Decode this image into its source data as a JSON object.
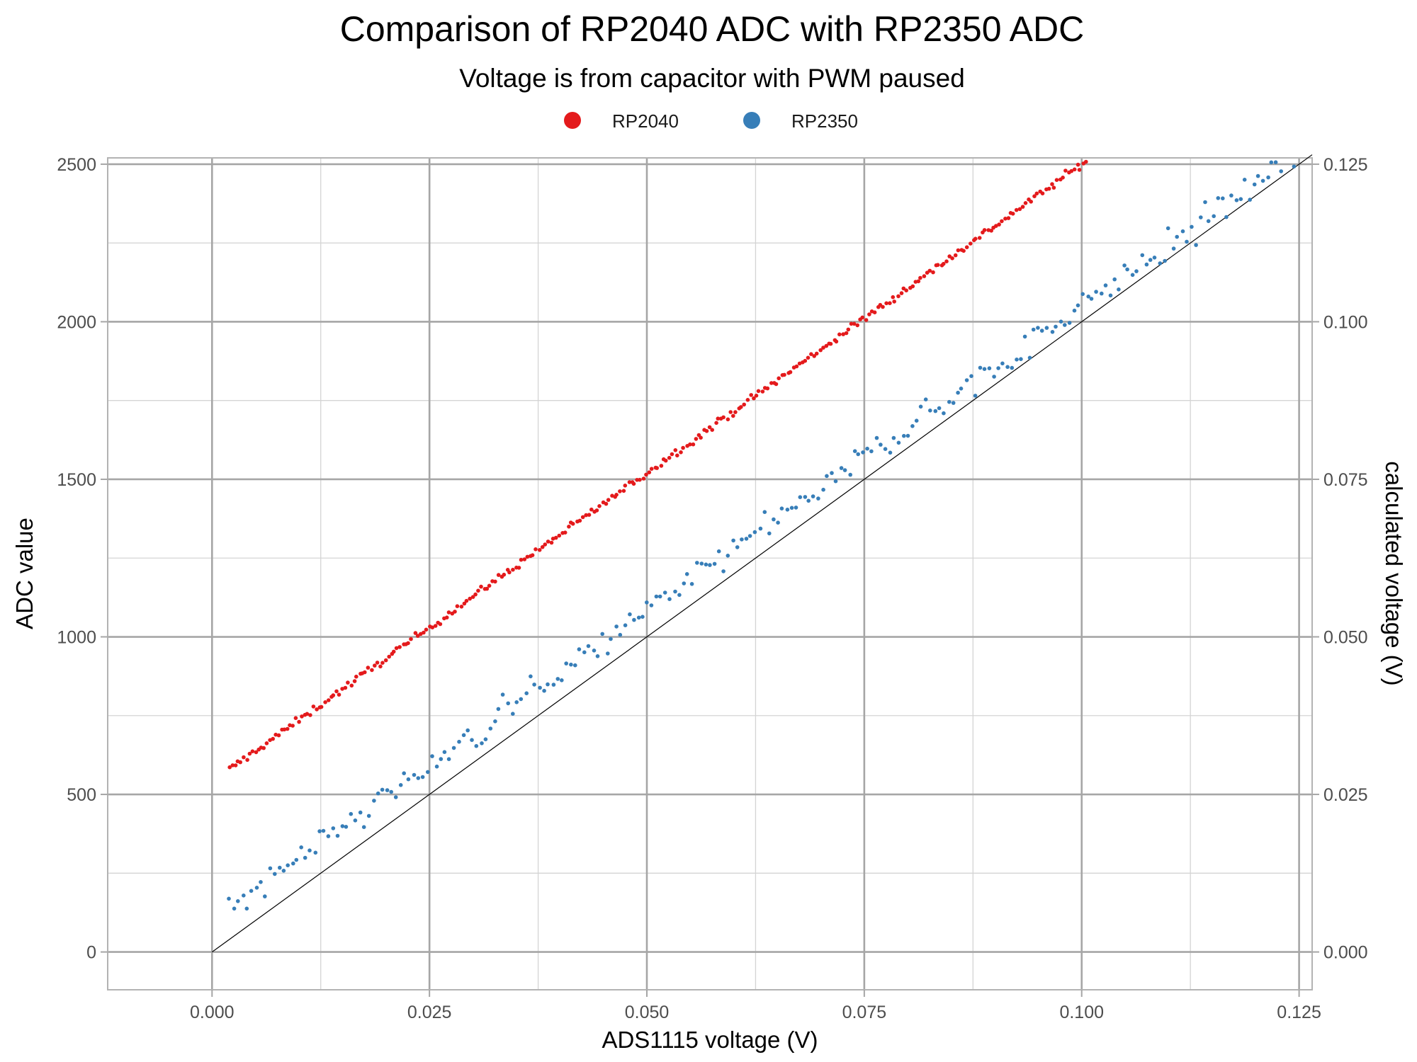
{
  "chart_data": {
    "type": "scatter",
    "title": "Comparison of RP2040 ADC with RP2350 ADC",
    "subtitle": "Voltage is from capacitor with PWM paused",
    "xlabel": "ADS1115 voltage (V)",
    "ylabel": "ADC value",
    "y2label": "calculated voltage (V)",
    "xlim": [
      -0.012,
      0.1265
    ],
    "ylim": [
      -120,
      2520
    ],
    "y2lim": [
      -0.006,
      0.126
    ],
    "x_ticks": [
      "0.000",
      "0.025",
      "0.050",
      "0.075",
      "0.100",
      "0.125"
    ],
    "y_ticks": [
      "0",
      "500",
      "1000",
      "1500",
      "2000",
      "2500"
    ],
    "y2_ticks": [
      "0.000",
      "0.025",
      "0.050",
      "0.075",
      "0.100",
      "0.125"
    ],
    "grid": true,
    "legend_position": "top",
    "reference_line": {
      "description": "y = x (ideal)",
      "from": [
        0,
        0
      ],
      "to": [
        0.1265,
        2530
      ],
      "color": "#000000"
    },
    "series": [
      {
        "name": "RP2040",
        "color": "#e41a1c",
        "fit": {
          "intercept": 540,
          "slope": 19600
        },
        "x_range": [
          0.002,
          0.1015
        ],
        "n_points": 300,
        "points": [
          {
            "x": 0.002,
            "y": 565
          },
          {
            "x": 0.01,
            "y": 735
          },
          {
            "x": 0.02,
            "y": 930
          },
          {
            "x": 0.025,
            "y": 1000
          },
          {
            "x": 0.03,
            "y": 1130
          },
          {
            "x": 0.04,
            "y": 1320
          },
          {
            "x": 0.05,
            "y": 1515
          },
          {
            "x": 0.06,
            "y": 1710
          },
          {
            "x": 0.07,
            "y": 1900
          },
          {
            "x": 0.075,
            "y": 2005
          },
          {
            "x": 0.08,
            "y": 2100
          },
          {
            "x": 0.09,
            "y": 2300
          },
          {
            "x": 0.1015,
            "y": 2520
          }
        ]
      },
      {
        "name": "RP2350",
        "color": "#377eb8",
        "fit": {
          "intercept": 110,
          "slope": 19400
        },
        "x_range": [
          0.002,
          0.1255
        ],
        "n_points": 240,
        "points": [
          {
            "x": 0.002,
            "y": 165
          },
          {
            "x": 0.01,
            "y": 290
          },
          {
            "x": 0.02,
            "y": 460
          },
          {
            "x": 0.025,
            "y": 580
          },
          {
            "x": 0.03,
            "y": 680
          },
          {
            "x": 0.04,
            "y": 860
          },
          {
            "x": 0.05,
            "y": 1060
          },
          {
            "x": 0.06,
            "y": 1260
          },
          {
            "x": 0.07,
            "y": 1450
          },
          {
            "x": 0.075,
            "y": 1560
          },
          {
            "x": 0.08,
            "y": 1640
          },
          {
            "x": 0.09,
            "y": 1830
          },
          {
            "x": 0.1,
            "y": 2040
          },
          {
            "x": 0.11,
            "y": 2240
          },
          {
            "x": 0.1255,
            "y": 2510
          }
        ]
      }
    ]
  }
}
